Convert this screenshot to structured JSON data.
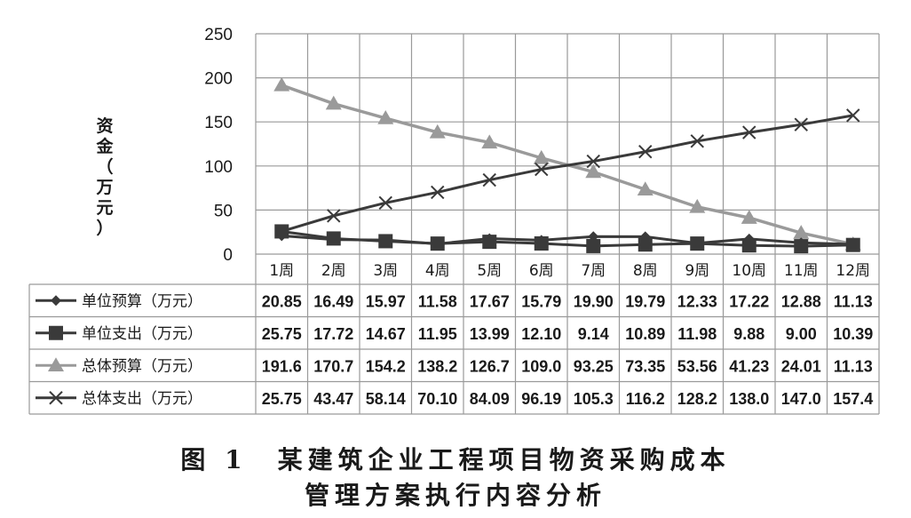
{
  "chart_data": {
    "type": "line",
    "ylabel": "资金（万元）",
    "ylim": [
      0,
      250
    ],
    "yticks": [
      0,
      50,
      100,
      150,
      200,
      250
    ],
    "grid": true,
    "legend": "table-rows-below",
    "categories": [
      "1周",
      "2周",
      "3周",
      "4周",
      "5周",
      "6周",
      "7周",
      "8周",
      "9周",
      "10周",
      "11周",
      "12周"
    ],
    "series": [
      {
        "name": "单位预算（万元）",
        "marker": "diamond",
        "color": "#3a3a3a",
        "values": [
          20.85,
          16.49,
          15.97,
          11.58,
          17.67,
          15.79,
          19.9,
          19.79,
          12.33,
          17.22,
          12.88,
          11.13
        ],
        "labels": [
          "20.85",
          "16.49",
          "15.97",
          "11.58",
          "17.67",
          "15.79",
          "19.90",
          "19.79",
          "12.33",
          "17.22",
          "12.88",
          "11.13"
        ]
      },
      {
        "name": "单位支出（万元）",
        "marker": "square",
        "color": "#3a3a3a",
        "values": [
          25.75,
          17.72,
          14.67,
          11.95,
          13.99,
          12.1,
          9.14,
          10.89,
          11.98,
          9.88,
          9.0,
          10.39
        ],
        "labels": [
          "25.75",
          "17.72",
          "14.67",
          "11.95",
          "13.99",
          "12.10",
          "9.14",
          "10.89",
          "11.98",
          "9.88",
          "9.00",
          "10.39"
        ]
      },
      {
        "name": "总体预算（万元）",
        "marker": "triangle",
        "color": "#9a9a9a",
        "values": [
          191.6,
          170.7,
          154.2,
          138.2,
          126.7,
          109.0,
          93.25,
          73.35,
          53.56,
          41.23,
          24.01,
          11.13
        ],
        "labels": [
          "191.6",
          "170.7",
          "154.2",
          "138.2",
          "126.7",
          "109.0",
          "93.25",
          "73.35",
          "53.56",
          "41.23",
          "24.01",
          "11.13"
        ]
      },
      {
        "name": "总体支出（万元）",
        "marker": "x",
        "color": "#3a3a3a",
        "values": [
          25.75,
          43.47,
          58.14,
          70.1,
          84.09,
          96.19,
          105.3,
          116.2,
          128.2,
          138.0,
          147.0,
          157.4
        ],
        "labels": [
          "25.75",
          "43.47",
          "58.14",
          "70.10",
          "84.09",
          "96.19",
          "105.3",
          "116.2",
          "128.2",
          "138.0",
          "147.0",
          "157.4"
        ]
      }
    ]
  },
  "caption": {
    "line1": "图 1　某建筑企业工程项目物资采购成本",
    "line2": "管理方案执行内容分析"
  }
}
